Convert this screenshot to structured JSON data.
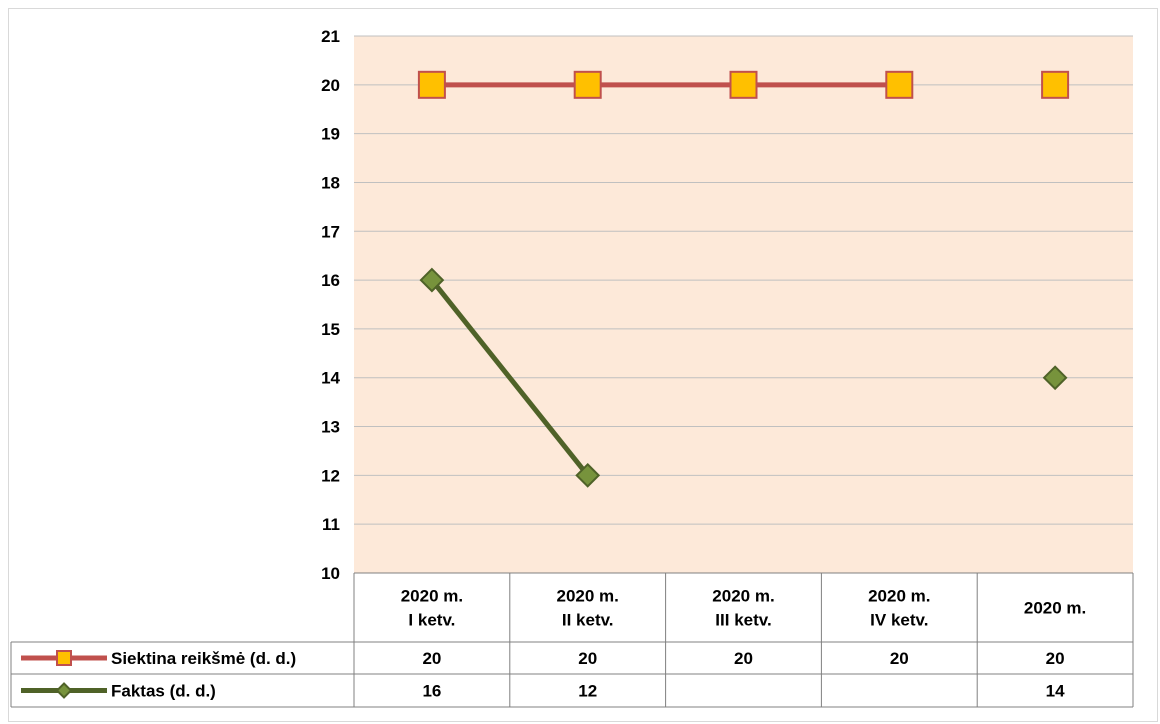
{
  "chart_data": {
    "type": "line",
    "title": "",
    "xlabel": "",
    "ylabel": "",
    "ylim": [
      10,
      21
    ],
    "yticks": [
      "10",
      "11",
      "12",
      "13",
      "14",
      "15",
      "16",
      "17",
      "18",
      "19",
      "20",
      "21"
    ],
    "categories": [
      [
        "2020 m.",
        "I ketv."
      ],
      [
        "2020 m.",
        "II ketv."
      ],
      [
        "2020 m.",
        "III ketv."
      ],
      [
        "2020 m.",
        "IV ketv."
      ],
      [
        "2020 m."
      ]
    ],
    "grid": true,
    "legend": "data-table-left",
    "series": [
      {
        "name": "Siektina reikšmė (d. d.)",
        "values": [
          20,
          20,
          20,
          20,
          20
        ],
        "connected": [
          true,
          true,
          true,
          true,
          false
        ],
        "table_values": [
          "20",
          "20",
          "20",
          "20",
          "20"
        ],
        "marker": "square",
        "line_color": "#c0504d",
        "marker_fill": "#ffc000",
        "marker_stroke": "#c0504d"
      },
      {
        "name": "Faktas (d. d.)",
        "values": [
          16,
          12,
          null,
          null,
          14
        ],
        "connected": [
          true,
          true,
          false,
          false,
          false
        ],
        "table_values": [
          "16",
          "12",
          "",
          "",
          "14"
        ],
        "marker": "diamond",
        "line_color": "#4f6228",
        "marker_fill": "#77933c",
        "marker_stroke": "#4f6228"
      }
    ],
    "colors": {
      "plot_background": "#fde9d9",
      "gridline": "#c0c0c0",
      "table_border": "#808080"
    }
  }
}
